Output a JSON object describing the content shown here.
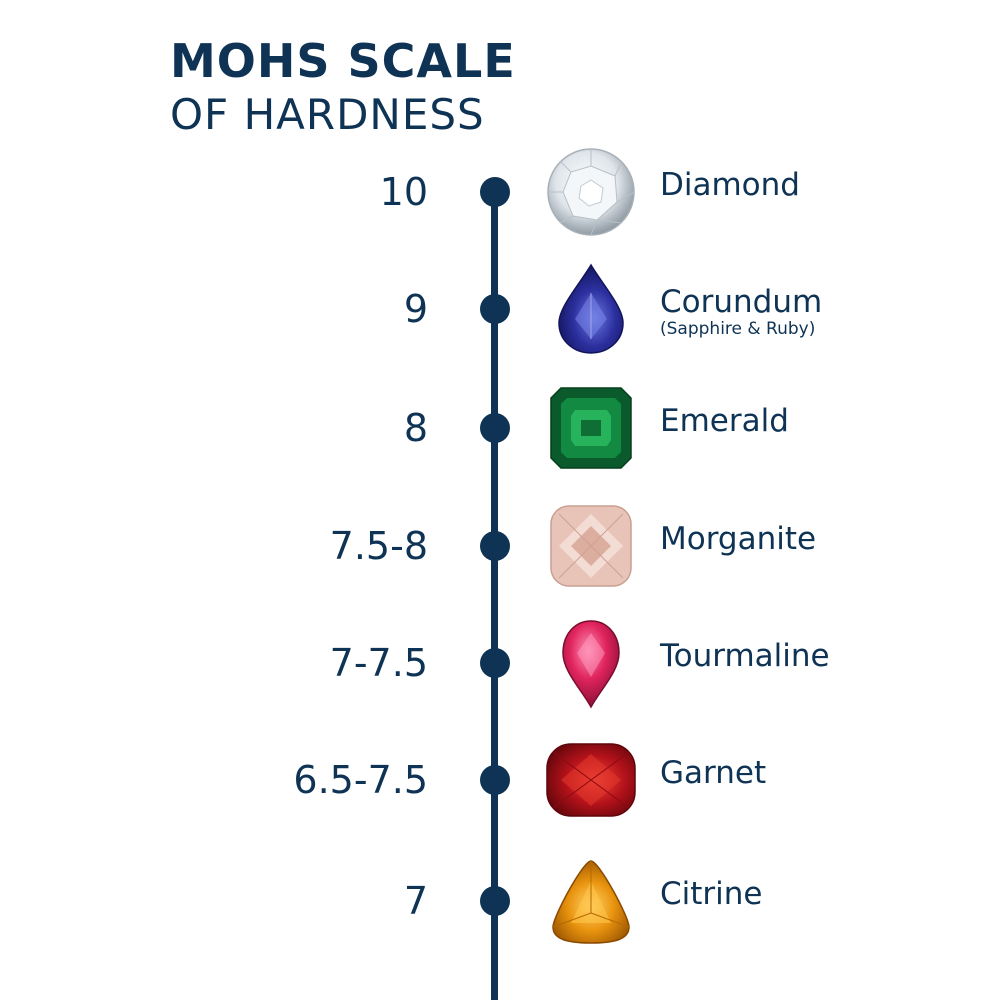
{
  "title": {
    "line1": "MOHS SCALE",
    "line2": "OF HARDNESS"
  },
  "colors": {
    "navy": "#0e3354",
    "background": "#ffffff"
  },
  "rows": [
    {
      "hardness": "10",
      "mineral": "Diamond",
      "note": "",
      "gem_icon": "diamond-icon",
      "gem_color": "#e9eef1"
    },
    {
      "hardness": "9",
      "mineral": "Corundum",
      "note": "(Sapphire & Ruby)",
      "gem_icon": "sapphire-icon",
      "gem_color": "#2b2f9e"
    },
    {
      "hardness": "8",
      "mineral": "Emerald",
      "note": "",
      "gem_icon": "emerald-icon",
      "gem_color": "#0f7a3b"
    },
    {
      "hardness": "7.5-8",
      "mineral": "Morganite",
      "note": "",
      "gem_icon": "morganite-icon",
      "gem_color": "#e8c4b8"
    },
    {
      "hardness": "7-7.5",
      "mineral": "Tourmaline",
      "note": "",
      "gem_icon": "tourmaline-icon",
      "gem_color": "#e0245e"
    },
    {
      "hardness": "6.5-7.5",
      "mineral": "Garnet",
      "note": "",
      "gem_icon": "garnet-icon",
      "gem_color": "#b5121b"
    },
    {
      "hardness": "7",
      "mineral": "Citrine",
      "note": "",
      "gem_icon": "citrine-icon",
      "gem_color": "#e9940f"
    }
  ]
}
